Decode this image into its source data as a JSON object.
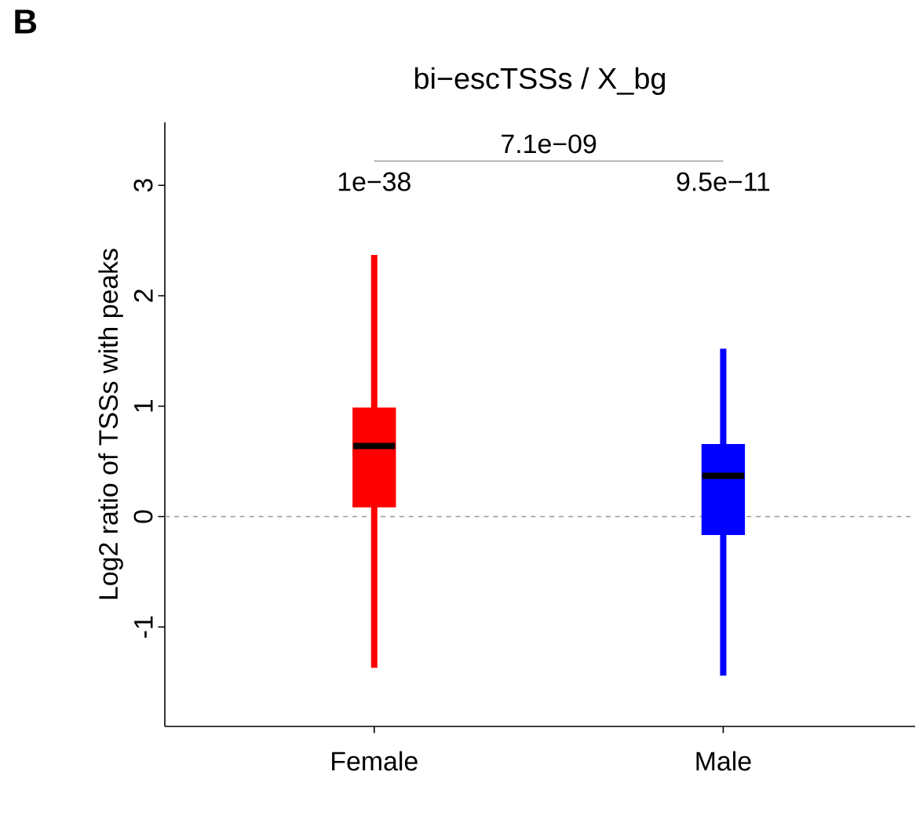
{
  "chart_data": {
    "type": "box",
    "title": "bi−escTSSs / X_bg",
    "ylabel": "Log2 ratio of TSSs with peaks",
    "categories": [
      "Female",
      "Male"
    ],
    "colors": [
      "#ff0000",
      "#0000ff"
    ],
    "boxes": [
      {
        "low": -1.37,
        "q1": 0.09,
        "median": 0.64,
        "q3": 0.98,
        "high": 2.37
      },
      {
        "low": -1.44,
        "q1": -0.16,
        "median": 0.37,
        "q3": 0.65,
        "high": 1.52
      }
    ],
    "ylim": [
      -1.9,
      3.57
    ],
    "yticks": [
      -1,
      0,
      1,
      2,
      3
    ],
    "ref_lines": [
      {
        "axis": "y",
        "value": 0,
        "color": "#999999",
        "line_style": "dashed"
      }
    ],
    "annotations": [
      "B",
      "7.1e−09",
      "1e−38",
      "9.5e−11"
    ]
  }
}
